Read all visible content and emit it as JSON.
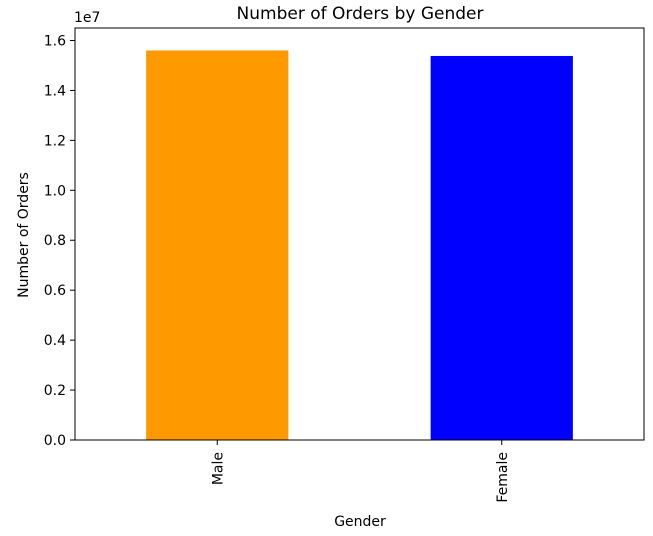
{
  "chart_data": {
    "type": "bar",
    "title": "Number of Orders by Gender",
    "xlabel": "Gender",
    "ylabel": "Number of Orders",
    "categories": [
      "Male",
      "Female"
    ],
    "values": [
      15600000,
      15380000
    ],
    "colors": [
      "#ff9900",
      "#0000ff"
    ],
    "ylim": [
      0,
      16500000
    ],
    "y_ticks": [
      0,
      2000000,
      4000000,
      6000000,
      8000000,
      10000000,
      12000000,
      14000000,
      16000000
    ],
    "y_tick_labels": [
      "0.0",
      "0.2",
      "0.4",
      "0.6",
      "0.8",
      "1.0",
      "1.2",
      "1.4",
      "1.6"
    ],
    "y_offset_text": "1e7",
    "grid": false,
    "legend": "none"
  }
}
